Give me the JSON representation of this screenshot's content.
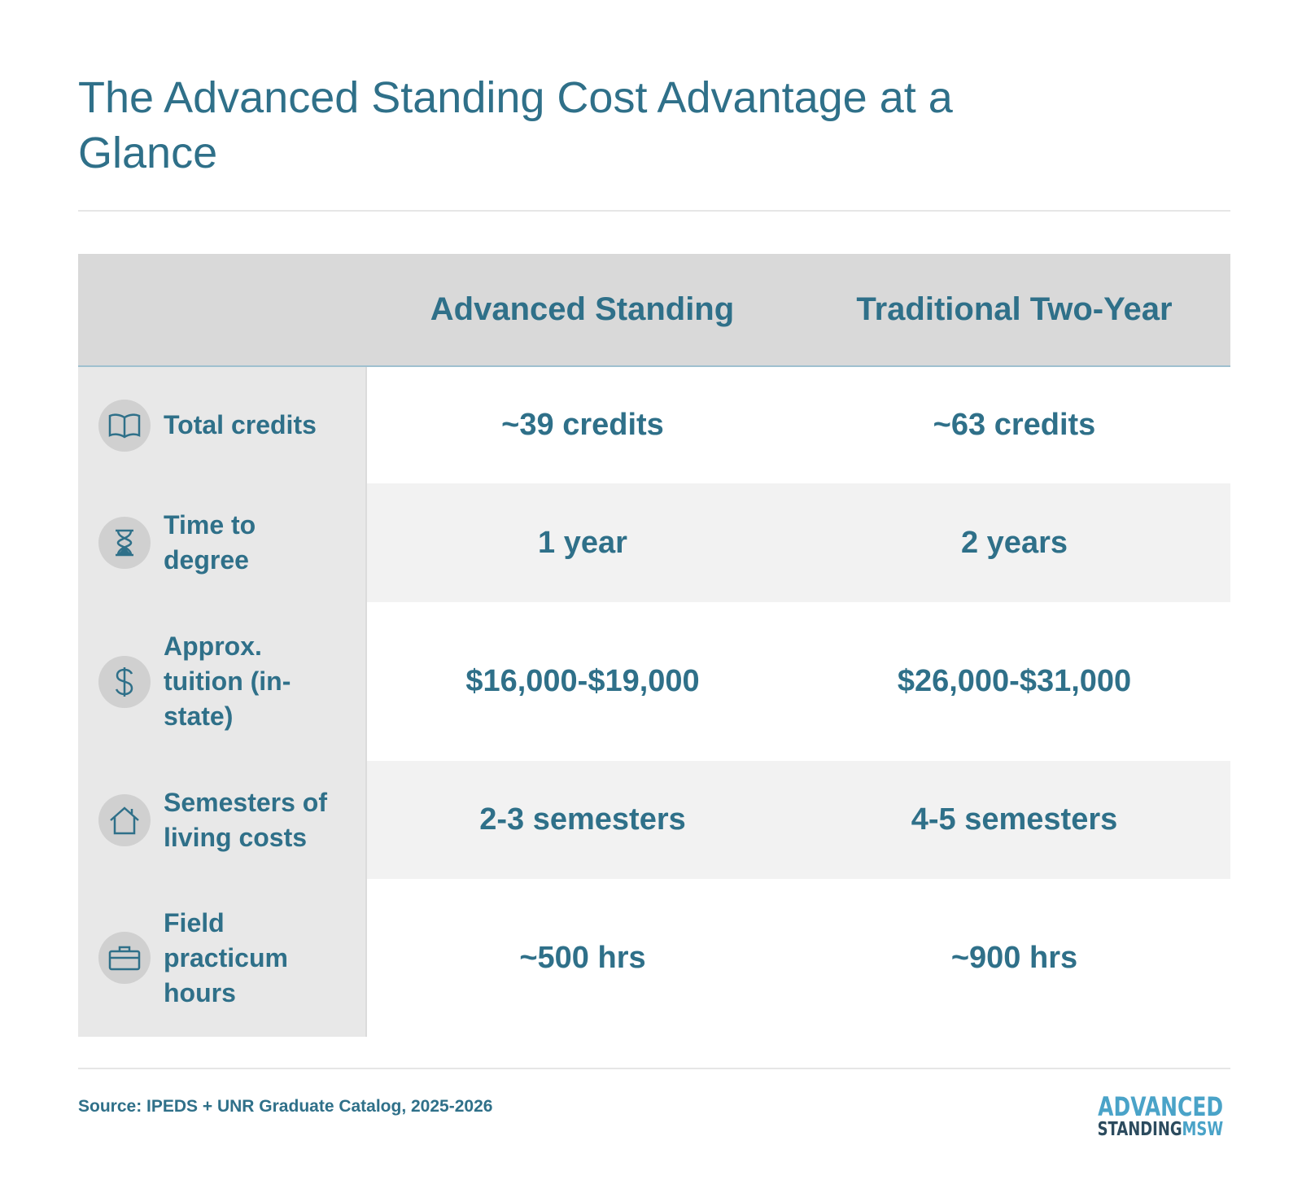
{
  "header": {
    "title": "The Advanced Standing Cost Advantage at a Glance"
  },
  "table": {
    "columns": [
      "Advanced Standing",
      "Traditional Two-Year"
    ],
    "rows": [
      {
        "label": "Total credits",
        "values": [
          "~39 credits",
          "~63 credits"
        ]
      },
      {
        "label": "Time to degree",
        "values": [
          "1 year",
          "2 years"
        ]
      },
      {
        "label": "Approx. tuition (in-state)",
        "values": [
          "$16,000-$19,000",
          "$26,000-$31,000"
        ]
      },
      {
        "label": "Semesters of living costs",
        "values": [
          "2-3 semesters",
          "4-5 semesters"
        ]
      },
      {
        "label": "Field practicum hours",
        "values": [
          "~500 hrs",
          "~900 hrs"
        ]
      }
    ]
  },
  "footer": {
    "source": "Source: IPEDS + UNR Graduate Catalog, 2025-2026",
    "logo": {
      "line1": "ADVANCED",
      "line2a": "STANDING",
      "line2b": "MSW"
    }
  }
}
